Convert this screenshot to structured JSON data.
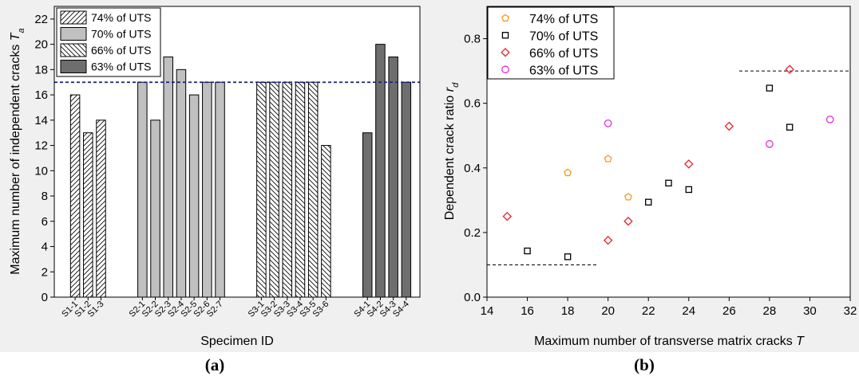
{
  "captions": {
    "a": "(a)",
    "b": "(b)"
  },
  "chart_data": [
    {
      "type": "bar",
      "panel": "a",
      "xlabel": "Specimen ID",
      "ylabel_main": "Maximum number of independent cracks ",
      "ylabel_sym": "T",
      "ylabel_sub": "a",
      "ylim": [
        0,
        23
      ],
      "yticks": [
        0,
        2,
        4,
        6,
        8,
        10,
        12,
        14,
        16,
        18,
        20,
        22
      ],
      "reference_line": {
        "y": 17,
        "color": "#1a237e",
        "style": "dashed"
      },
      "legend_position": "top-left",
      "groups": [
        {
          "name": "74% of UTS",
          "pattern": "hatch-forward",
          "color": "#ffffff",
          "categories": [
            "S1-1",
            "S1-2",
            "S1-3"
          ],
          "values": [
            16,
            13,
            14
          ]
        },
        {
          "name": "70% of UTS",
          "pattern": "solid",
          "color": "#c0c0c0",
          "categories": [
            "S2-1",
            "S2-2",
            "S2-3",
            "S2-4",
            "S2-5",
            "S2-6",
            "S2-7"
          ],
          "values": [
            17,
            14,
            19,
            18,
            16,
            17,
            17
          ]
        },
        {
          "name": "66% of UTS",
          "pattern": "hatch-back",
          "color": "#ffffff",
          "categories": [
            "S3-1",
            "S3-2",
            "S3-3",
            "S3-4",
            "S3-5",
            "S3-6"
          ],
          "values": [
            17,
            17,
            17,
            17,
            17,
            12
          ]
        },
        {
          "name": "63% of UTS",
          "pattern": "solid",
          "color": "#6e6e6e",
          "categories": [
            "S4-1",
            "S4-2",
            "S4-3",
            "S4-4"
          ],
          "values": [
            13,
            20,
            19,
            17
          ]
        }
      ]
    },
    {
      "type": "scatter",
      "panel": "b",
      "xlabel_main": "Maximum number of transverse matrix cracks ",
      "xlabel_sym": "T",
      "ylabel_main": "Dependent crack ratio ",
      "ylabel_sym": "r",
      "ylabel_sub": "d",
      "xlim": [
        14,
        32
      ],
      "ylim": [
        0,
        0.9
      ],
      "xticks": [
        14,
        16,
        18,
        20,
        22,
        24,
        26,
        28,
        30,
        32
      ],
      "yticks": [
        0.0,
        0.2,
        0.4,
        0.6,
        0.8
      ],
      "ytick_labels": [
        "0.0",
        "0.2",
        "0.4",
        "0.6",
        "0.8"
      ],
      "legend_position": "top-left",
      "reference_lines": [
        {
          "x": [
            14,
            19.5
          ],
          "y": 0.1
        },
        {
          "x": [
            26.5,
            32
          ],
          "y": 0.7
        }
      ],
      "series": [
        {
          "name": "74% of UTS",
          "marker": "pentagon",
          "color": "#f39c1f",
          "points": [
            [
              18,
              0.385
            ],
            [
              20,
              0.428
            ],
            [
              21,
              0.31
            ]
          ]
        },
        {
          "name": "70% of UTS",
          "marker": "square",
          "color": "#000000",
          "points": [
            [
              16,
              0.143
            ],
            [
              18,
              0.125
            ],
            [
              22,
              0.294
            ],
            [
              23,
              0.353
            ],
            [
              24,
              0.333
            ],
            [
              28,
              0.647
            ],
            [
              29,
              0.526
            ]
          ]
        },
        {
          "name": "66% of UTS",
          "marker": "diamond",
          "color": "#e8212b",
          "points": [
            [
              15,
              0.25
            ],
            [
              20,
              0.176
            ],
            [
              21,
              0.235
            ],
            [
              24,
              0.412
            ],
            [
              26,
              0.529
            ],
            [
              29,
              0.705
            ]
          ]
        },
        {
          "name": "63% of UTS",
          "marker": "circle",
          "color": "#e62ad8",
          "points": [
            [
              20,
              0.538
            ],
            [
              28,
              0.474
            ],
            [
              31,
              0.55
            ]
          ]
        }
      ]
    }
  ]
}
